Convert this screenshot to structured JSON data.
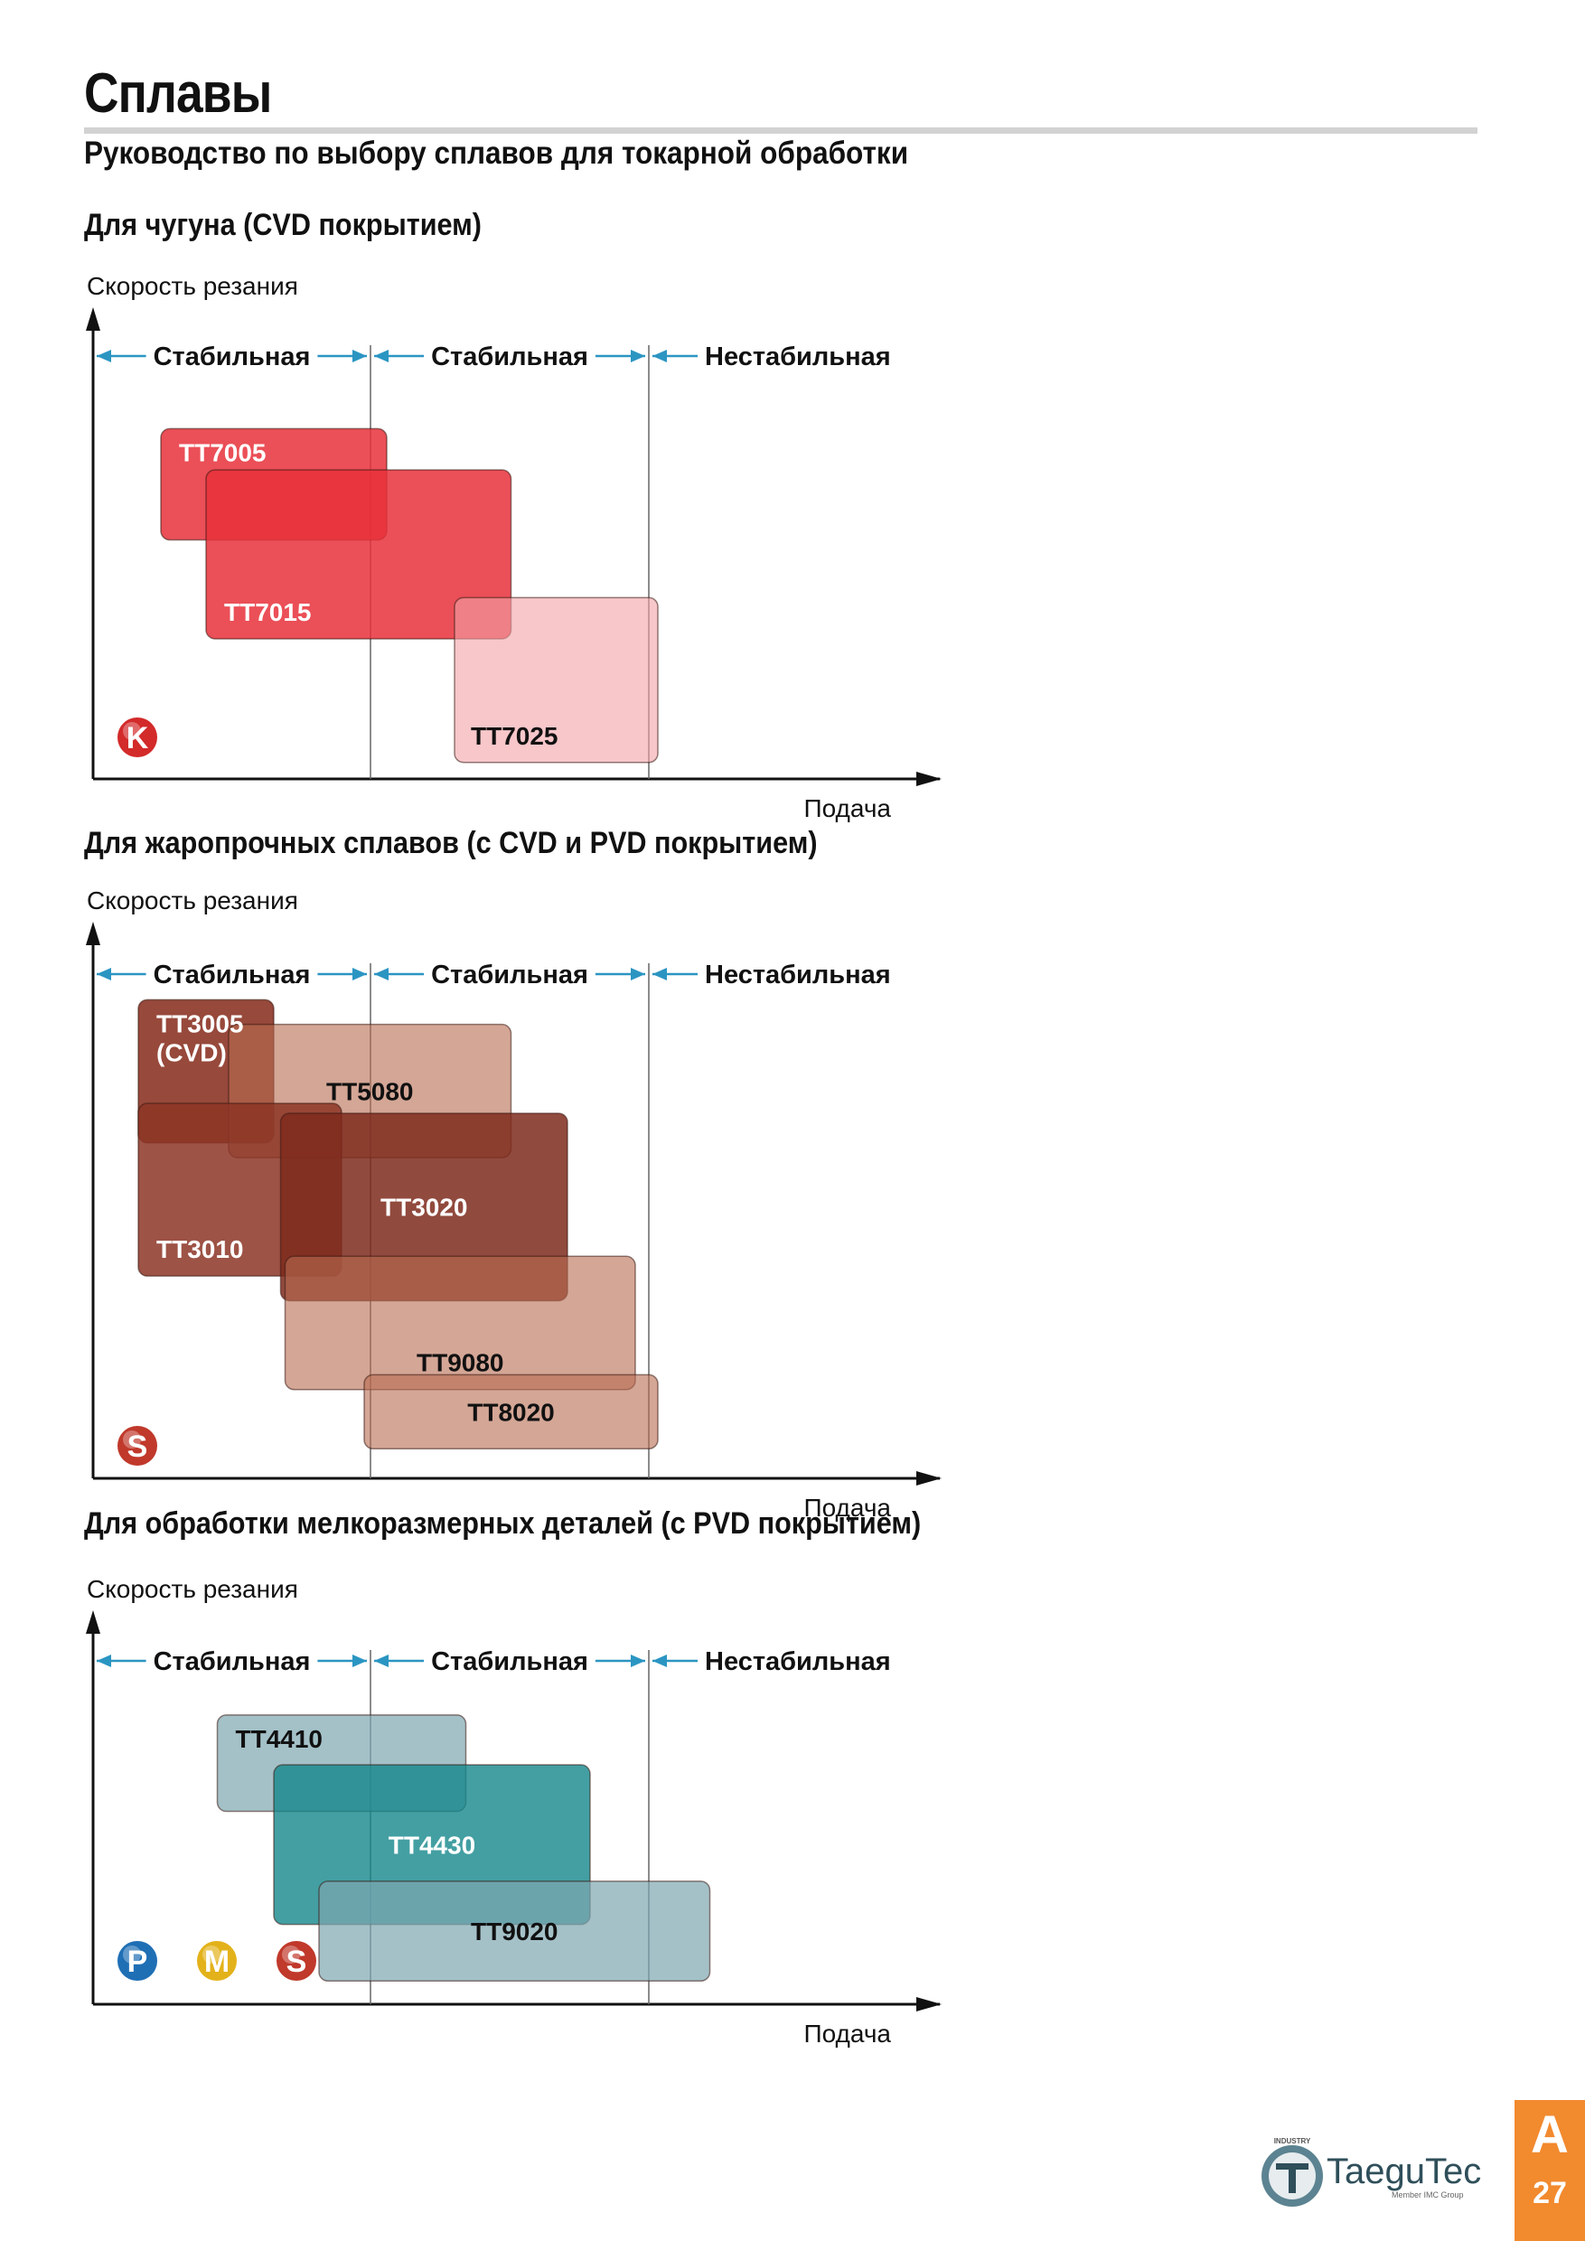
{
  "page": {
    "title": "Сплавы",
    "subtitle": "Руководство по выбору сплавов для токарной обработки"
  },
  "charts": [
    {
      "heading": "Для чугуна (CVD покрытием)",
      "y_axis_label": "Скорость резания",
      "x_axis_label": "Подача",
      "zones": [
        "Стабильная",
        "Стабильная",
        "Нестабильная"
      ],
      "iso_groups": [
        {
          "letter": "K",
          "color": "#d32a2a"
        }
      ]
    },
    {
      "heading": "Для жаропрочных сплавов (с CVD и PVD покрытием)",
      "y_axis_label": "Скорость резания",
      "x_axis_label": "Подача",
      "zones": [
        "Стабильная",
        "Стабильная",
        "Нестабильная"
      ],
      "iso_groups": [
        {
          "letter": "S",
          "color": "#c0392b"
        }
      ]
    },
    {
      "heading": "Для обработки мелкоразмерных деталей (с PVD покрытием)",
      "y_axis_label": "Скорость резания",
      "x_axis_label": "Подача",
      "zones": [
        "Стабильная",
        "Стабильная",
        "Нестабильная"
      ],
      "iso_groups": [
        {
          "letter": "P",
          "color": "#1f6fb5"
        },
        {
          "letter": "M",
          "color": "#e3b21a"
        },
        {
          "letter": "S",
          "color": "#c0392b"
        }
      ]
    }
  ],
  "chart_data": [
    {
      "type": "range",
      "x": "Подача",
      "y": "Скорость резания",
      "zones": [
        "Стабильная",
        "Стабильная",
        "Нестабильная"
      ],
      "grades": [
        {
          "name": "TT7005",
          "feed": [
            0.3,
            1.3
          ],
          "speed": [
            0.58,
            0.85
          ],
          "fill": "#e8303a",
          "opacity": 0.85,
          "text": "#ffffff",
          "label_pos": "top"
        },
        {
          "name": "TT7015",
          "feed": [
            0.5,
            1.85
          ],
          "speed": [
            0.34,
            0.75
          ],
          "fill": "#e8303a",
          "opacity": 0.85,
          "text": "#ffffff",
          "label_pos": "bottom"
        },
        {
          "name": "TT7025",
          "feed": [
            1.6,
            2.5
          ],
          "speed": [
            0.04,
            0.44
          ],
          "fill": "#f2a2a6",
          "opacity": 0.6,
          "text": "#111111",
          "label_pos": "bottom"
        }
      ]
    },
    {
      "type": "range",
      "x": "Подача",
      "y": "Скорость резания",
      "zones": [
        "Стабильная",
        "Стабильная",
        "Нестабильная"
      ],
      "grades": [
        {
          "name": "TT3005",
          "sub": "(CVD)",
          "feed": [
            0.2,
            0.8
          ],
          "speed": [
            0.68,
            0.97
          ],
          "fill": "#8c3526",
          "opacity": 0.9,
          "text": "#ffffff",
          "label_pos": "top"
        },
        {
          "name": "TT5080",
          "feed": [
            0.6,
            1.85
          ],
          "speed": [
            0.65,
            0.92
          ],
          "fill": "#b86a50",
          "opacity": 0.6,
          "text": "#111111",
          "label_pos": "center"
        },
        {
          "name": "TT3010",
          "feed": [
            0.2,
            1.1
          ],
          "speed": [
            0.41,
            0.76
          ],
          "fill": "#8c3526",
          "opacity": 0.85,
          "text": "#ffffff",
          "label_pos": "bottom"
        },
        {
          "name": "TT3020",
          "feed": [
            0.83,
            2.1
          ],
          "speed": [
            0.36,
            0.74
          ],
          "fill": "#7e2a1c",
          "opacity": 0.85,
          "text": "#ffffff",
          "label_pos": "center"
        },
        {
          "name": "TT9080",
          "feed": [
            0.85,
            2.4
          ],
          "speed": [
            0.18,
            0.45
          ],
          "fill": "#b86a50",
          "opacity": 0.6,
          "text": "#111111",
          "label_pos": "bottom"
        },
        {
          "name": "TT8020",
          "feed": [
            1.2,
            2.5
          ],
          "speed": [
            0.06,
            0.21
          ],
          "fill": "#b86a50",
          "opacity": 0.6,
          "text": "#111111",
          "label_pos": "center"
        }
      ]
    },
    {
      "type": "range",
      "x": "Подача",
      "y": "Скорость резания",
      "zones": [
        "Стабильная",
        "Стабильная",
        "Нестабильная"
      ],
      "grades": [
        {
          "name": "TT4410",
          "feed": [
            0.55,
            1.65
          ],
          "speed": [
            0.58,
            0.87
          ],
          "fill": "#7ea7b1",
          "opacity": 0.7,
          "text": "#111111",
          "label_pos": "top"
        },
        {
          "name": "TT4430",
          "feed": [
            0.8,
            2.2
          ],
          "speed": [
            0.24,
            0.72
          ],
          "fill": "#14878b",
          "opacity": 0.8,
          "text": "#ffffff",
          "label_pos": "center"
        },
        {
          "name": "TT9020",
          "feed": [
            1.0,
            2.73
          ],
          "speed": [
            0.07,
            0.37
          ],
          "fill": "#7ea7b1",
          "opacity": 0.7,
          "text": "#111111",
          "label_pos": "center"
        }
      ]
    }
  ],
  "footer": {
    "brand": "TaeguTec",
    "tagline": "Member IMC Group",
    "top_word": "INDUSTRY",
    "section_letter": "A",
    "page_number": "27",
    "tab_color": "#f28a2e"
  }
}
